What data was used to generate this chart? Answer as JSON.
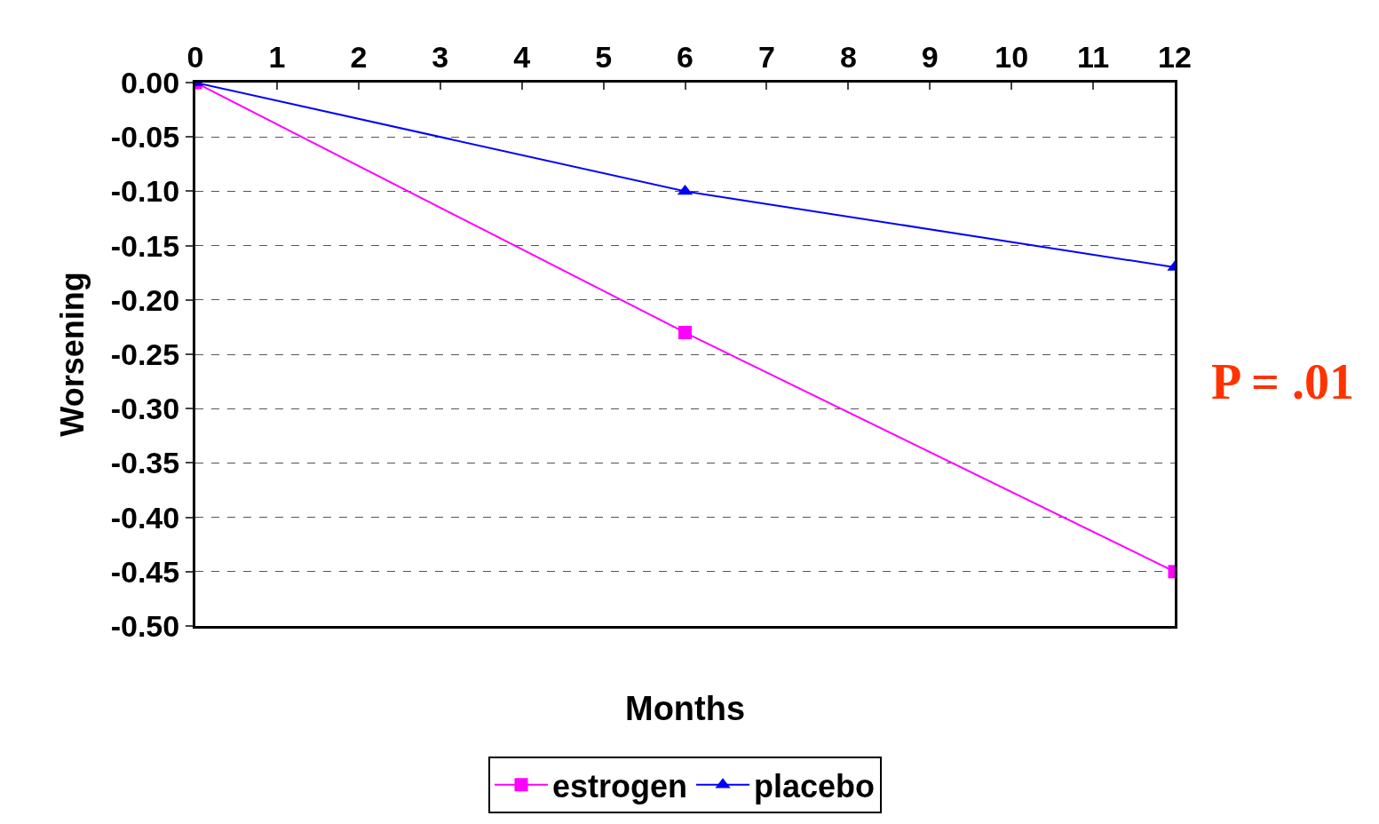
{
  "chart_data": {
    "type": "line",
    "xlabel": "Months",
    "ylabel": "Worsening",
    "x": [
      0,
      6,
      12
    ],
    "series": [
      {
        "name": "estrogen",
        "color": "#ff00ff",
        "marker": "square",
        "values": [
          0,
          -0.23,
          -0.45
        ]
      },
      {
        "name": "placebo",
        "color": "#0000ff",
        "marker": "triangle",
        "values": [
          0,
          -0.1,
          -0.17
        ]
      }
    ],
    "xlim": [
      0,
      12
    ],
    "xticks": [
      0,
      1,
      2,
      3,
      4,
      5,
      6,
      7,
      8,
      9,
      10,
      11,
      12
    ],
    "ylim": [
      -0.5,
      0
    ],
    "yticks": [
      {
        "value": 0,
        "label": "0.00"
      },
      {
        "value": -0.05,
        "label": "-0.05"
      },
      {
        "value": -0.1,
        "label": "-0.10"
      },
      {
        "value": -0.15,
        "label": "-0.15"
      },
      {
        "value": -0.2,
        "label": "-0.20"
      },
      {
        "value": -0.25,
        "label": "-0.25"
      },
      {
        "value": -0.3,
        "label": "-0.30"
      },
      {
        "value": -0.35,
        "label": "-0.35"
      },
      {
        "value": -0.4,
        "label": "-0.40"
      },
      {
        "value": -0.45,
        "label": "-0.45"
      },
      {
        "value": -0.5,
        "label": "-0.50"
      }
    ],
    "grid": "y",
    "legend": "bottom",
    "line_style": "solid",
    "annotations": [
      "P = .01"
    ]
  }
}
